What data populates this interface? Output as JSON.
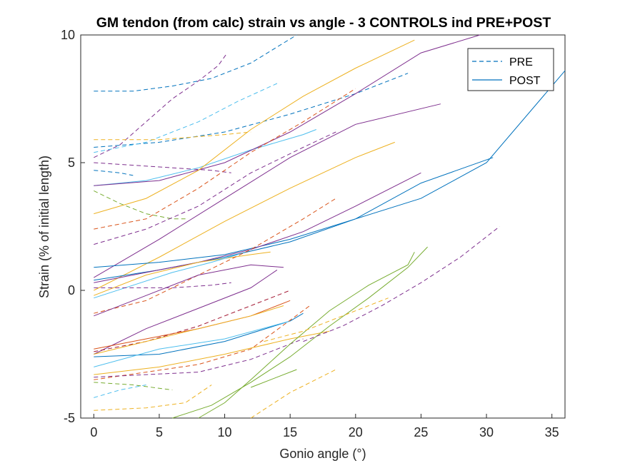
{
  "chart_data": {
    "type": "line",
    "title": "GM tendon (from calc) strain vs angle - 3 CONTROLS ind PRE+POST",
    "xlabel": "Gonio angle (°)",
    "ylabel": "Strain (% of initial length)",
    "xlim": [
      -1,
      36
    ],
    "ylim": [
      -5,
      10
    ],
    "xticks": [
      0,
      5,
      10,
      15,
      20,
      25,
      30,
      35
    ],
    "yticks": [
      -5,
      0,
      5,
      10
    ],
    "grid": false,
    "legend": {
      "placement": "top-right",
      "entries": [
        {
          "label": "PRE",
          "dash": true,
          "color": "#0072BD"
        },
        {
          "label": "POST",
          "dash": false,
          "color": "#0072BD"
        }
      ]
    },
    "series": [
      {
        "color": "#0072BD",
        "dash": true,
        "x": [
          0,
          3,
          6,
          9,
          12,
          15.5
        ],
        "y": [
          7.8,
          7.8,
          8.0,
          8.3,
          8.9,
          10.0
        ]
      },
      {
        "color": "#7E2F8E",
        "dash": true,
        "x": [
          0,
          2,
          4,
          6,
          8,
          9.5,
          10.2
        ],
        "y": [
          5.2,
          5.7,
          6.6,
          7.5,
          8.2,
          8.8,
          9.3
        ]
      },
      {
        "color": "#0072BD",
        "dash": true,
        "x": [
          0,
          5,
          10,
          15,
          20,
          24
        ],
        "y": [
          5.6,
          5.8,
          6.2,
          6.9,
          7.7,
          8.5
        ]
      },
      {
        "color": "#4DBEEE",
        "dash": true,
        "x": [
          0,
          4,
          8,
          11,
          14
        ],
        "y": [
          5.4,
          5.8,
          6.6,
          7.4,
          8.1
        ]
      },
      {
        "color": "#EDB120",
        "dash": true,
        "x": [
          0,
          5,
          10,
          12
        ],
        "y": [
          5.9,
          5.9,
          6.1,
          6.2
        ]
      },
      {
        "color": "#0072BD",
        "dash": true,
        "x": [
          0,
          2,
          3
        ],
        "y": [
          4.7,
          4.6,
          4.5
        ]
      },
      {
        "color": "#7E2F8E",
        "dash": true,
        "x": [
          0,
          3,
          6,
          9,
          10.5
        ],
        "y": [
          5.0,
          4.9,
          4.8,
          4.7,
          4.6
        ]
      },
      {
        "color": "#4DBEEE",
        "dash": false,
        "x": [
          0,
          4,
          8,
          12,
          16,
          17
        ],
        "y": [
          4.1,
          4.3,
          4.8,
          5.5,
          6.1,
          6.3
        ]
      },
      {
        "color": "#7E2F8E",
        "dash": false,
        "x": [
          0,
          5,
          10,
          15,
          20,
          25,
          29.5
        ],
        "y": [
          4.1,
          4.3,
          5.0,
          6.2,
          7.7,
          9.3,
          10.0
        ]
      },
      {
        "color": "#EDB120",
        "dash": false,
        "x": [
          0,
          4,
          8,
          12,
          16,
          20,
          24.5
        ],
        "y": [
          3.0,
          3.6,
          4.7,
          6.3,
          7.6,
          8.7,
          9.8
        ]
      },
      {
        "color": "#77AC30",
        "dash": true,
        "x": [
          0,
          2,
          4,
          6,
          7
        ],
        "y": [
          3.9,
          3.4,
          3.0,
          2.8,
          2.8
        ]
      },
      {
        "color": "#D95319",
        "dash": true,
        "x": [
          0,
          4,
          8,
          12,
          16,
          20
        ],
        "y": [
          2.4,
          2.8,
          4.0,
          5.4,
          6.6,
          7.9
        ]
      },
      {
        "color": "#7E2F8E",
        "dash": true,
        "x": [
          0,
          4,
          8,
          12,
          16,
          18.5
        ],
        "y": [
          1.8,
          2.4,
          3.3,
          4.6,
          5.6,
          6.2
        ]
      },
      {
        "color": "#7E2F8E",
        "dash": false,
        "x": [
          0,
          5,
          10,
          15,
          20,
          26.5
        ],
        "y": [
          0.5,
          2.0,
          3.6,
          5.2,
          6.5,
          7.3
        ]
      },
      {
        "color": "#EDB120",
        "dash": false,
        "x": [
          0,
          5,
          10,
          15,
          20,
          23
        ],
        "y": [
          0.0,
          1.3,
          2.7,
          4.0,
          5.2,
          5.8
        ]
      },
      {
        "color": "#0072BD",
        "dash": false,
        "x": [
          0,
          5,
          10,
          15,
          20,
          25,
          30,
          36
        ],
        "y": [
          0.9,
          1.1,
          1.4,
          2.0,
          2.8,
          3.6,
          5.0,
          8.6
        ]
      },
      {
        "color": "#0072BD",
        "dash": false,
        "x": [
          0,
          5,
          10,
          15,
          20,
          25,
          30.5
        ],
        "y": [
          0.4,
          0.8,
          1.3,
          1.9,
          2.8,
          4.2,
          5.2
        ]
      },
      {
        "color": "#7E2F8E",
        "dash": false,
        "x": [
          0,
          4,
          8,
          12,
          16,
          20,
          25
        ],
        "y": [
          0.3,
          0.7,
          1.1,
          1.6,
          2.3,
          3.3,
          4.6
        ]
      },
      {
        "color": "#EDB120",
        "dash": false,
        "x": [
          0,
          4,
          8,
          12,
          13.5
        ],
        "y": [
          -0.2,
          0.6,
          1.1,
          1.4,
          1.5
        ]
      },
      {
        "color": "#4DBEEE",
        "dash": false,
        "x": [
          0,
          3,
          6,
          9,
          11
        ],
        "y": [
          -0.3,
          0.2,
          0.7,
          1.1,
          1.4
        ]
      },
      {
        "color": "#D95319",
        "dash": true,
        "x": [
          0,
          4,
          8,
          12,
          16,
          18.5
        ],
        "y": [
          -0.9,
          -0.4,
          0.6,
          1.6,
          2.8,
          3.6
        ]
      },
      {
        "color": "#7E2F8E",
        "dash": true,
        "x": [
          0,
          3,
          6,
          9,
          10.5
        ],
        "y": [
          0.1,
          0.1,
          0.1,
          0.2,
          0.3
        ]
      },
      {
        "color": "#7E2F8E",
        "dash": false,
        "x": [
          0,
          4,
          8,
          12,
          14.5
        ],
        "y": [
          -1.0,
          -0.2,
          0.6,
          1.0,
          0.9
        ]
      },
      {
        "color": "#7E2F8E",
        "dash": false,
        "x": [
          0,
          4,
          8,
          12,
          14
        ],
        "y": [
          -2.5,
          -1.5,
          -0.7,
          0.1,
          0.8
        ]
      },
      {
        "color": "#A2142F",
        "dash": true,
        "x": [
          0,
          4,
          8,
          12,
          15
        ],
        "y": [
          -2.4,
          -2.0,
          -1.4,
          -0.6,
          0.0
        ]
      },
      {
        "color": "#D95319",
        "dash": false,
        "x": [
          0,
          4,
          8,
          12,
          15
        ],
        "y": [
          -2.3,
          -1.9,
          -1.5,
          -1.0,
          -0.4
        ]
      },
      {
        "color": "#EDB120",
        "dash": false,
        "x": [
          0,
          4,
          8,
          12,
          14.5
        ],
        "y": [
          -2.5,
          -2.0,
          -1.5,
          -1.0,
          -0.6
        ]
      },
      {
        "color": "#0072BD",
        "dash": false,
        "x": [
          0,
          5,
          10,
          15,
          16
        ],
        "y": [
          -2.6,
          -2.5,
          -2.0,
          -1.2,
          -0.9
        ]
      },
      {
        "color": "#4DBEEE",
        "dash": false,
        "x": [
          0,
          5,
          10,
          15
        ],
        "y": [
          -3.0,
          -2.3,
          -1.9,
          -1.2
        ]
      },
      {
        "color": "#EDB120",
        "dash": false,
        "x": [
          0,
          5,
          10,
          15,
          18
        ],
        "y": [
          -3.3,
          -3.0,
          -2.5,
          -1.9,
          -1.6
        ]
      },
      {
        "color": "#D95319",
        "dash": true,
        "x": [
          0,
          4,
          8,
          12,
          16.5
        ],
        "y": [
          -3.5,
          -3.2,
          -2.9,
          -2.3,
          -0.6
        ]
      },
      {
        "color": "#7E2F8E",
        "dash": true,
        "x": [
          0,
          4,
          8,
          12,
          16
        ],
        "y": [
          -3.4,
          -3.3,
          -3.2,
          -2.7,
          -1.9
        ]
      },
      {
        "color": "#77AC30",
        "dash": false,
        "x": [
          6,
          9,
          12,
          15,
          18,
          21,
          24,
          25.5
        ],
        "y": [
          -5.0,
          -4.5,
          -3.6,
          -2.6,
          -1.4,
          -0.3,
          0.9,
          1.7
        ]
      },
      {
        "color": "#77AC30",
        "dash": false,
        "x": [
          8,
          10,
          12,
          15,
          18,
          21,
          24,
          24.5
        ],
        "y": [
          -5.0,
          -4.4,
          -3.5,
          -2.1,
          -0.8,
          0.2,
          1.0,
          1.5
        ]
      },
      {
        "color": "#7E2F8E",
        "dash": true,
        "x": [
          16,
          19,
          22,
          25,
          28,
          31
        ],
        "y": [
          -2.0,
          -1.4,
          -0.6,
          0.3,
          1.3,
          2.5
        ]
      },
      {
        "color": "#EDB120",
        "dash": true,
        "x": [
          13,
          16,
          19,
          22.5
        ],
        "y": [
          -2.0,
          -1.6,
          -1.0,
          -0.3
        ]
      },
      {
        "color": "#77AC30",
        "dash": false,
        "x": [
          12,
          14,
          15.5
        ],
        "y": [
          -3.8,
          -3.4,
          -3.1
        ]
      },
      {
        "color": "#EDB120",
        "dash": true,
        "x": [
          12,
          15,
          18.5
        ],
        "y": [
          -5.0,
          -4.0,
          -3.1
        ]
      },
      {
        "color": "#EDB120",
        "dash": true,
        "x": [
          0,
          4,
          7,
          9
        ],
        "y": [
          -4.7,
          -4.6,
          -4.4,
          -3.7
        ]
      },
      {
        "color": "#4DBEEE",
        "dash": true,
        "x": [
          0,
          2,
          4
        ],
        "y": [
          -4.2,
          -3.9,
          -3.7
        ]
      },
      {
        "color": "#77AC30",
        "dash": true,
        "x": [
          0,
          3,
          6
        ],
        "y": [
          -3.6,
          -3.7,
          -3.9
        ]
      }
    ]
  }
}
